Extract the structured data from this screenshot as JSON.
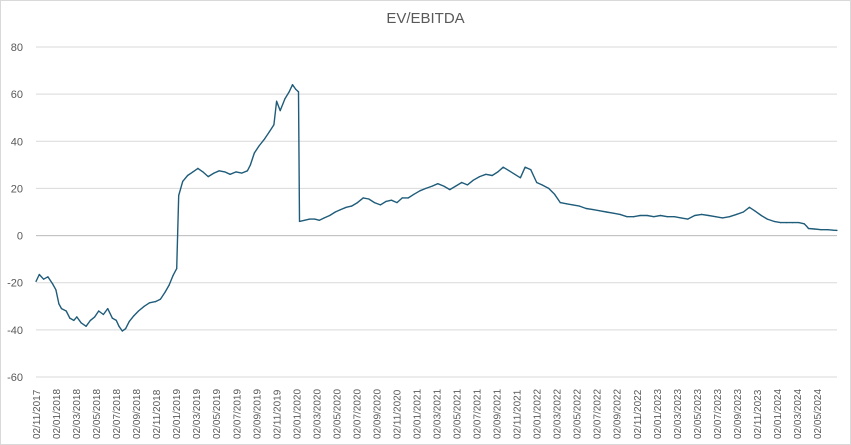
{
  "chart_data": {
    "type": "line",
    "title": "EV/EBITDA",
    "xlabel": "",
    "ylabel": "",
    "ylim": [
      -60,
      80
    ],
    "yticks": [
      80,
      60,
      40,
      20,
      0,
      -20,
      -40,
      -60
    ],
    "grid": "horizontal",
    "legend": "none",
    "x_date_range": [
      "2017-11-02",
      "2024-06-12"
    ],
    "xtick_labels": [
      "02/11/2017",
      "02/01/2018",
      "02/03/2018",
      "02/05/2018",
      "02/07/2018",
      "02/09/2018",
      "02/11/2018",
      "02/01/2019",
      "02/03/2019",
      "02/05/2019",
      "02/07/2019",
      "02/09/2019",
      "02/11/2019",
      "02/01/2020",
      "02/03/2020",
      "02/05/2020",
      "02/07/2020",
      "02/09/2020",
      "02/11/2020",
      "02/01/2021",
      "02/03/2021",
      "02/05/2021",
      "02/07/2021",
      "02/09/2021",
      "02/11/2021",
      "02/01/2022",
      "02/03/2022",
      "02/05/2022",
      "02/07/2022",
      "02/09/2022",
      "02/11/2022",
      "02/01/2023",
      "02/03/2023",
      "02/05/2023",
      "02/07/2023",
      "02/09/2023",
      "02/11/2023",
      "02/01/2024",
      "02/03/2024",
      "02/05/2024"
    ],
    "series": [
      {
        "color": "#1f5c7a",
        "points": [
          [
            "2017-11-02",
            -19.5
          ],
          [
            "2017-11-12",
            -16.5
          ],
          [
            "2017-11-25",
            -18.5
          ],
          [
            "2017-12-08",
            -17.5
          ],
          [
            "2017-12-22",
            -20.5
          ],
          [
            "2018-01-01",
            -23
          ],
          [
            "2018-01-10",
            -29
          ],
          [
            "2018-01-18",
            -31
          ],
          [
            "2018-02-01",
            -32
          ],
          [
            "2018-02-12",
            -35
          ],
          [
            "2018-02-24",
            -36
          ],
          [
            "2018-03-05",
            -34.5
          ],
          [
            "2018-03-18",
            -37
          ],
          [
            "2018-04-02",
            -38.5
          ],
          [
            "2018-04-15",
            -36
          ],
          [
            "2018-04-28",
            -34.5
          ],
          [
            "2018-05-10",
            -32
          ],
          [
            "2018-05-24",
            -33.5
          ],
          [
            "2018-06-06",
            -31
          ],
          [
            "2018-06-20",
            -35
          ],
          [
            "2018-07-02",
            -36
          ],
          [
            "2018-07-10",
            -38.5
          ],
          [
            "2018-07-20",
            -40.5
          ],
          [
            "2018-07-30",
            -39.5
          ],
          [
            "2018-08-10",
            -36.5
          ],
          [
            "2018-08-24",
            -34
          ],
          [
            "2018-09-07",
            -32
          ],
          [
            "2018-09-24",
            -30
          ],
          [
            "2018-10-10",
            -28.5
          ],
          [
            "2018-10-28",
            -28
          ],
          [
            "2018-11-12",
            -27
          ],
          [
            "2018-11-26",
            -24
          ],
          [
            "2018-12-08",
            -21
          ],
          [
            "2018-12-20",
            -17
          ],
          [
            "2018-12-31",
            -14
          ],
          [
            "2019-01-06",
            17
          ],
          [
            "2019-01-18",
            23
          ],
          [
            "2019-02-02",
            25.5
          ],
          [
            "2019-02-18",
            27
          ],
          [
            "2019-03-05",
            28.5
          ],
          [
            "2019-03-20",
            27
          ],
          [
            "2019-04-05",
            25
          ],
          [
            "2019-04-22",
            26.5
          ],
          [
            "2019-05-08",
            27.5
          ],
          [
            "2019-05-25",
            27
          ],
          [
            "2019-06-10",
            26
          ],
          [
            "2019-06-28",
            27
          ],
          [
            "2019-07-15",
            26.5
          ],
          [
            "2019-08-01",
            27.5
          ],
          [
            "2019-08-10",
            30
          ],
          [
            "2019-08-22",
            35
          ],
          [
            "2019-09-05",
            38
          ],
          [
            "2019-09-22",
            41
          ],
          [
            "2019-10-06",
            44
          ],
          [
            "2019-10-20",
            47
          ],
          [
            "2019-10-28",
            57
          ],
          [
            "2019-11-08",
            53
          ],
          [
            "2019-11-22",
            58
          ],
          [
            "2019-12-05",
            61
          ],
          [
            "2019-12-15",
            64
          ],
          [
            "2019-12-25",
            62
          ],
          [
            "2020-01-02",
            61
          ],
          [
            "2020-01-05",
            6
          ],
          [
            "2020-01-20",
            6.5
          ],
          [
            "2020-02-05",
            7
          ],
          [
            "2020-02-20",
            7
          ],
          [
            "2020-03-05",
            6.5
          ],
          [
            "2020-03-20",
            7.5
          ],
          [
            "2020-04-05",
            8.5
          ],
          [
            "2020-04-22",
            10
          ],
          [
            "2020-05-08",
            11
          ],
          [
            "2020-05-25",
            12
          ],
          [
            "2020-06-10",
            12.5
          ],
          [
            "2020-06-28",
            14
          ],
          [
            "2020-07-15",
            16
          ],
          [
            "2020-08-01",
            15.5
          ],
          [
            "2020-08-18",
            14
          ],
          [
            "2020-09-05",
            13
          ],
          [
            "2020-09-22",
            14.5
          ],
          [
            "2020-10-08",
            15
          ],
          [
            "2020-10-25",
            14
          ],
          [
            "2020-11-10",
            16
          ],
          [
            "2020-11-28",
            16
          ],
          [
            "2020-12-15",
            17.5
          ],
          [
            "2021-01-02",
            19
          ],
          [
            "2021-01-20",
            20
          ],
          [
            "2021-02-08",
            21
          ],
          [
            "2021-02-25",
            22
          ],
          [
            "2021-03-15",
            21
          ],
          [
            "2021-04-02",
            19.5
          ],
          [
            "2021-04-20",
            21
          ],
          [
            "2021-05-08",
            22.5
          ],
          [
            "2021-05-25",
            21.5
          ],
          [
            "2021-06-12",
            23.5
          ],
          [
            "2021-07-01",
            25
          ],
          [
            "2021-07-20",
            26
          ],
          [
            "2021-08-08",
            25.5
          ],
          [
            "2021-08-25",
            27
          ],
          [
            "2021-09-10",
            29
          ],
          [
            "2021-09-28",
            27.5
          ],
          [
            "2021-10-15",
            26
          ],
          [
            "2021-11-01",
            24.5
          ],
          [
            "2021-11-15",
            29
          ],
          [
            "2021-12-02",
            28
          ],
          [
            "2021-12-20",
            22.5
          ],
          [
            "2022-01-05",
            21.5
          ],
          [
            "2022-01-25",
            20
          ],
          [
            "2022-02-12",
            17.5
          ],
          [
            "2022-03-01",
            14
          ],
          [
            "2022-03-20",
            13.5
          ],
          [
            "2022-04-08",
            13
          ],
          [
            "2022-04-28",
            12.5
          ],
          [
            "2022-05-18",
            11.5
          ],
          [
            "2022-06-08",
            11
          ],
          [
            "2022-06-28",
            10.5
          ],
          [
            "2022-07-18",
            10
          ],
          [
            "2022-08-08",
            9.5
          ],
          [
            "2022-08-28",
            9
          ],
          [
            "2022-09-18",
            8
          ],
          [
            "2022-10-08",
            8
          ],
          [
            "2022-10-28",
            8.5
          ],
          [
            "2022-11-18",
            8.5
          ],
          [
            "2022-12-08",
            8
          ],
          [
            "2022-12-28",
            8.5
          ],
          [
            "2023-01-18",
            8
          ],
          [
            "2023-02-08",
            8
          ],
          [
            "2023-02-28",
            7.5
          ],
          [
            "2023-03-20",
            7
          ],
          [
            "2023-04-10",
            8.5
          ],
          [
            "2023-05-01",
            9
          ],
          [
            "2023-05-22",
            8.5
          ],
          [
            "2023-06-12",
            8
          ],
          [
            "2023-07-03",
            7.5
          ],
          [
            "2023-07-24",
            8
          ],
          [
            "2023-08-14",
            9
          ],
          [
            "2023-09-04",
            10
          ],
          [
            "2023-09-22",
            12
          ],
          [
            "2023-10-08",
            10.5
          ],
          [
            "2023-10-28",
            8.5
          ],
          [
            "2023-11-15",
            7
          ],
          [
            "2023-12-05",
            6
          ],
          [
            "2023-12-25",
            5.5
          ],
          [
            "2024-01-12",
            5.5
          ],
          [
            "2024-01-30",
            5.5
          ],
          [
            "2024-02-18",
            5.5
          ],
          [
            "2024-03-05",
            5
          ],
          [
            "2024-03-12",
            4
          ],
          [
            "2024-03-18",
            3
          ],
          [
            "2024-04-05",
            2.8
          ],
          [
            "2024-04-25",
            2.5
          ],
          [
            "2024-05-15",
            2.5
          ],
          [
            "2024-06-01",
            2.3
          ],
          [
            "2024-06-12",
            2.2
          ]
        ]
      }
    ]
  }
}
